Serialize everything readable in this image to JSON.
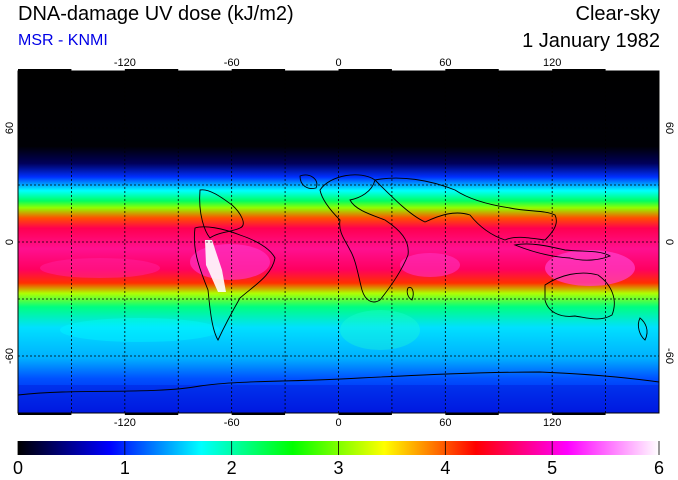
{
  "header": {
    "title": "DNA-damage UV dose (kJ/m2)",
    "source": "MSR - KNMI",
    "condition": "Clear-sky",
    "date": "1 January 1982"
  },
  "map": {
    "lon_ticks": [
      {
        "value": -120,
        "label": "-120"
      },
      {
        "value": -60,
        "label": "-60"
      },
      {
        "value": 0,
        "label": "0"
      },
      {
        "value": 60,
        "label": "60"
      },
      {
        "value": 120,
        "label": "120"
      }
    ],
    "lat_ticks": [
      {
        "value": 60,
        "label": "60"
      },
      {
        "value": 0,
        "label": "0"
      },
      {
        "value": -60,
        "label": "-60"
      }
    ],
    "lon_range": [
      -180,
      180
    ],
    "lat_range": [
      -90,
      90
    ],
    "gridline_lons": [
      -150,
      -120,
      -90,
      -60,
      -30,
      0,
      30,
      60,
      90,
      120,
      150
    ],
    "gridline_lats": [
      60,
      30,
      0,
      -30,
      -60
    ]
  },
  "colorbar": {
    "min": 0,
    "max": 6,
    "labels": [
      "0",
      "1",
      "2",
      "3",
      "4",
      "5",
      "6"
    ],
    "colors": [
      "#000000",
      "#0000ff",
      "#00ffff",
      "#00ff00",
      "#ffff00",
      "#ff0000",
      "#ff00ff",
      "#ffffff"
    ]
  }
}
